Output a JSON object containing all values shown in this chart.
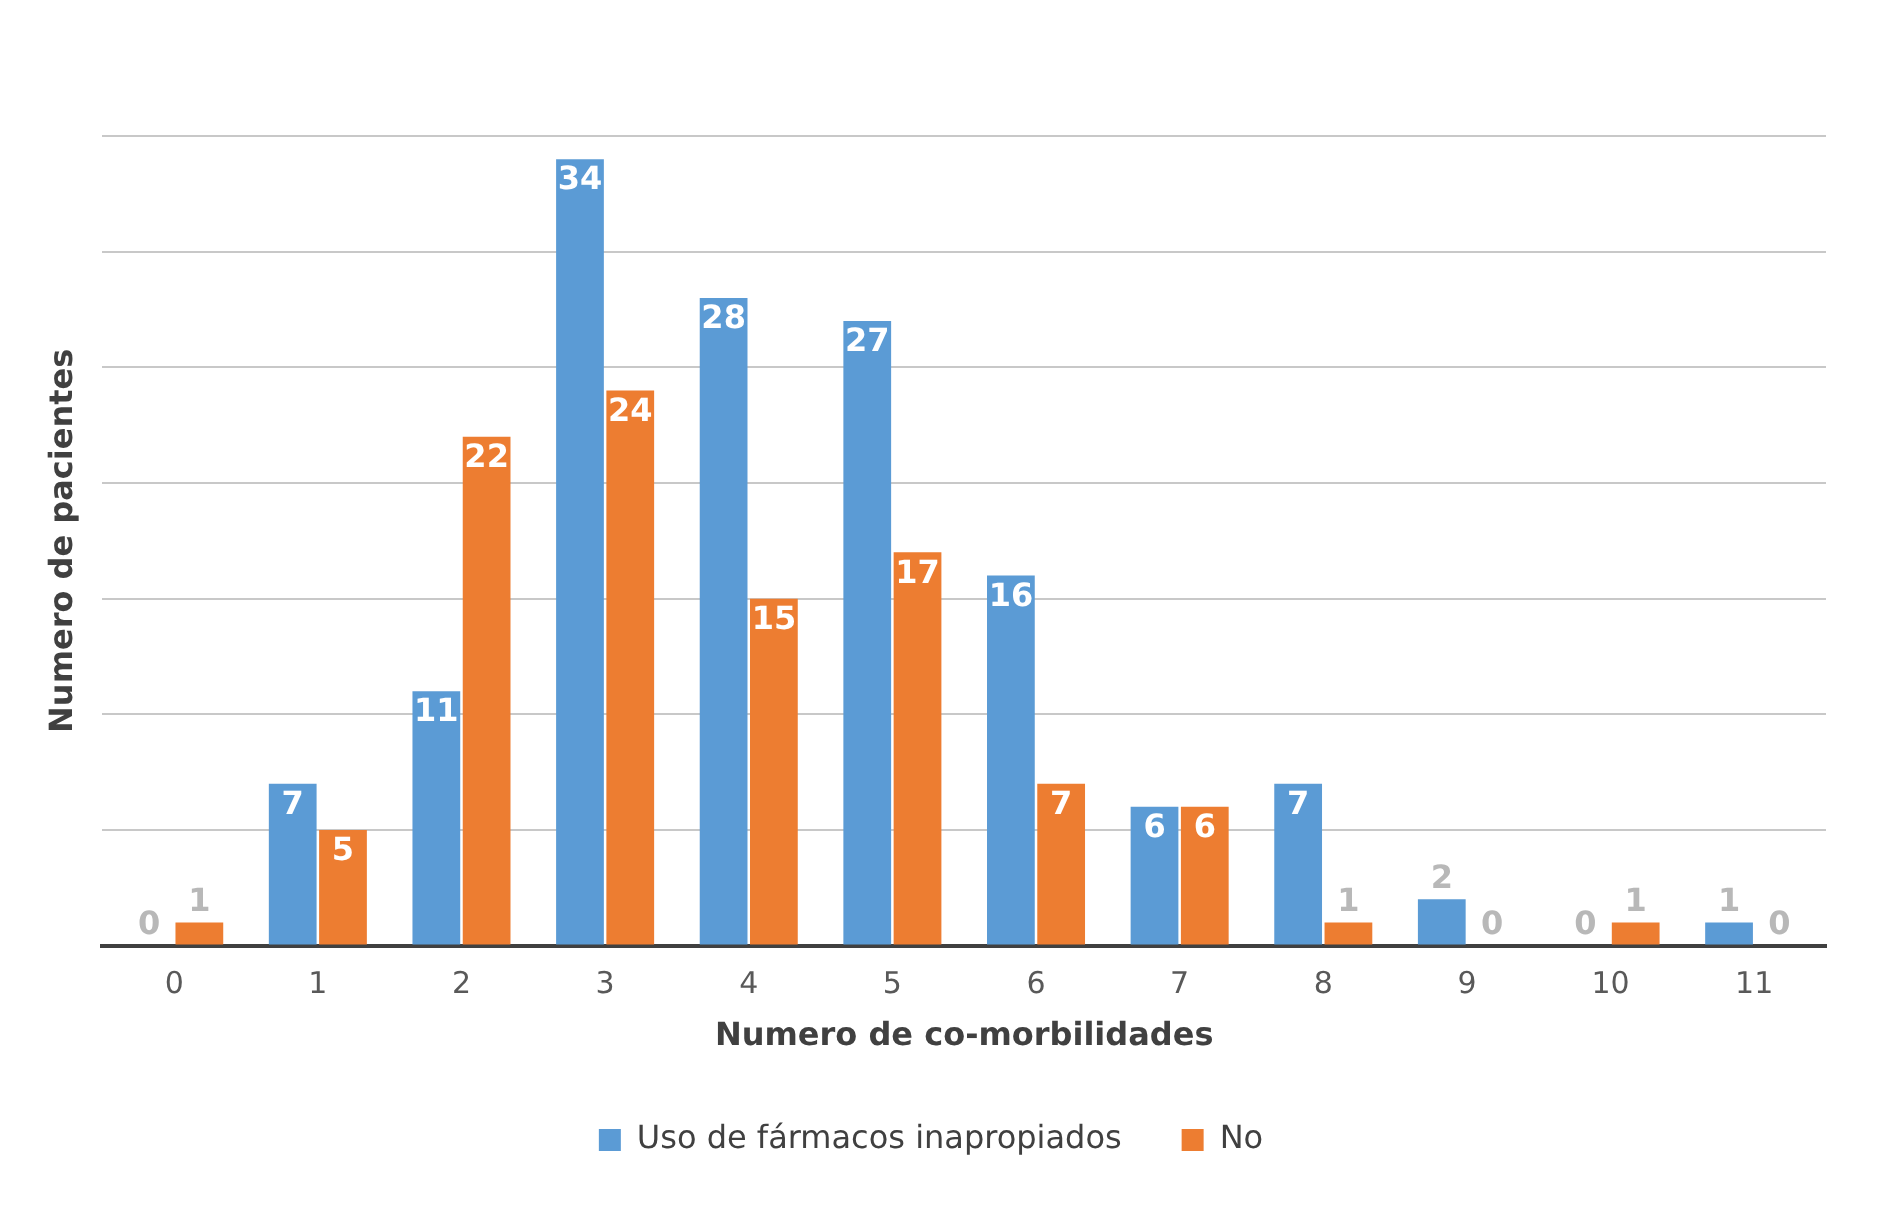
{
  "chart_data": {
    "type": "bar",
    "xlabel": "Numero de co-morbilidades",
    "ylabel": "Numero de pacientes",
    "categories": [
      "0",
      "1",
      "2",
      "3",
      "4",
      "5",
      "6",
      "7",
      "8",
      "9",
      "10",
      "11"
    ],
    "series": [
      {
        "name": "Uso de fármacos inapropiados",
        "color": "#5b9bd5",
        "values": [
          0,
          7,
          11,
          34,
          28,
          27,
          16,
          6,
          7,
          2,
          0,
          1
        ]
      },
      {
        "name": "No",
        "color": "#ed7d31",
        "values": [
          1,
          5,
          22,
          24,
          15,
          17,
          7,
          6,
          1,
          0,
          1,
          0
        ]
      }
    ],
    "ylim": [
      0,
      35
    ],
    "yticks": [
      {
        "value": 0,
        "label": null
      },
      {
        "value": 5,
        "label": null
      },
      {
        "value": 10,
        "label": null
      },
      {
        "value": 15,
        "label": null
      },
      {
        "value": 20,
        "label": null
      },
      {
        "value": 25,
        "label": null
      },
      {
        "value": 30,
        "label": null
      },
      {
        "value": 35,
        "label": null
      }
    ],
    "grid": "y",
    "legend": "bottom",
    "data_labels": true
  }
}
